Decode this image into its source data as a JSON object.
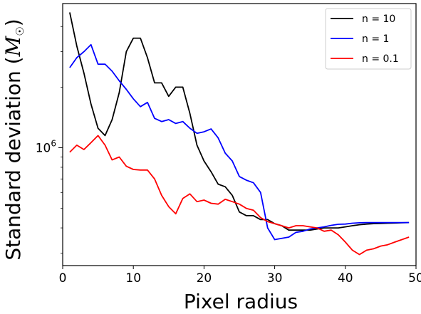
{
  "chart_data": {
    "type": "line",
    "xlabel": "Pixel radius",
    "ylabel": "Standard deviation ",
    "ylabel_symbol": "M",
    "ylabel_sun": "☉",
    "y_scale": "log",
    "xlim": [
      0,
      50
    ],
    "ylim": [
      260000,
      5200000
    ],
    "x_ticks": [
      0,
      10,
      20,
      30,
      40,
      50
    ],
    "y_major_ticks": [
      {
        "value": 1000000,
        "base": "10",
        "exp": "6"
      }
    ],
    "y_minor_ticks": [
      300000,
      400000,
      500000,
      600000,
      700000,
      800000,
      900000,
      2000000,
      3000000,
      4000000
    ],
    "grid": false,
    "legend_position": "top-right",
    "series": [
      {
        "name": "n = 10",
        "color": "#000000",
        "x": [
          1,
          2,
          3,
          4,
          5,
          6,
          7,
          8,
          9,
          10,
          11,
          12,
          13,
          14,
          15,
          16,
          17,
          18,
          19,
          20,
          21,
          22,
          23,
          24,
          25,
          26,
          27,
          28,
          29,
          30,
          31,
          32,
          33,
          34,
          35,
          36,
          37,
          38,
          39,
          40,
          41,
          42,
          43,
          44,
          45,
          46,
          47,
          48,
          49
        ],
        "y": [
          4700000,
          3200000,
          2350000,
          1650000,
          1250000,
          1150000,
          1380000,
          1880000,
          3000000,
          3500000,
          3500000,
          2800000,
          2100000,
          2100000,
          1800000,
          2000000,
          2000000,
          1480000,
          1030000,
          860000,
          760000,
          660000,
          640000,
          580000,
          480000,
          460000,
          460000,
          440000,
          440000,
          420000,
          410000,
          390000,
          390000,
          390000,
          390000,
          395000,
          400000,
          400000,
          400000,
          405000,
          410000,
          415000,
          418000,
          420000,
          421000,
          422000,
          423000,
          424000,
          425000
        ]
      },
      {
        "name": "n = 1",
        "color": "#0000ff",
        "x": [
          1,
          2,
          3,
          4,
          5,
          6,
          7,
          8,
          9,
          10,
          11,
          12,
          13,
          14,
          15,
          16,
          17,
          18,
          19,
          20,
          21,
          22,
          23,
          24,
          25,
          26,
          27,
          28,
          29,
          30,
          31,
          32,
          33,
          34,
          35,
          36,
          37,
          38,
          39,
          40,
          41,
          42,
          43,
          44,
          45,
          46,
          47,
          48,
          49
        ],
        "y": [
          2500000,
          2800000,
          3000000,
          3250000,
          2600000,
          2600000,
          2400000,
          2150000,
          1950000,
          1750000,
          1600000,
          1680000,
          1400000,
          1350000,
          1380000,
          1320000,
          1350000,
          1250000,
          1180000,
          1200000,
          1240000,
          1120000,
          940000,
          860000,
          720000,
          690000,
          670000,
          600000,
          400000,
          350000,
          355000,
          360000,
          380000,
          385000,
          395000,
          400000,
          405000,
          412000,
          417000,
          418000,
          422000,
          424000,
          425000,
          425000,
          425000,
          425000,
          425000,
          425000,
          425000
        ]
      },
      {
        "name": "n = 0.1",
        "color": "#ff0000",
        "x": [
          1,
          2,
          3,
          4,
          5,
          6,
          7,
          8,
          9,
          10,
          11,
          12,
          13,
          14,
          15,
          16,
          17,
          18,
          19,
          20,
          21,
          22,
          23,
          24,
          25,
          26,
          27,
          28,
          29,
          30,
          31,
          32,
          33,
          34,
          35,
          36,
          37,
          38,
          39,
          40,
          41,
          42,
          43,
          44,
          45,
          46,
          47,
          48,
          49
        ],
        "y": [
          950000,
          1030000,
          980000,
          1060000,
          1150000,
          1030000,
          870000,
          900000,
          810000,
          780000,
          775000,
          775000,
          700000,
          580000,
          510000,
          470000,
          560000,
          590000,
          540000,
          550000,
          530000,
          525000,
          555000,
          540000,
          525000,
          500000,
          490000,
          450000,
          430000,
          420000,
          410000,
          400000,
          410000,
          410000,
          405000,
          400000,
          385000,
          390000,
          370000,
          340000,
          310000,
          295000,
          310000,
          315000,
          325000,
          330000,
          340000,
          350000,
          360000
        ]
      }
    ]
  }
}
